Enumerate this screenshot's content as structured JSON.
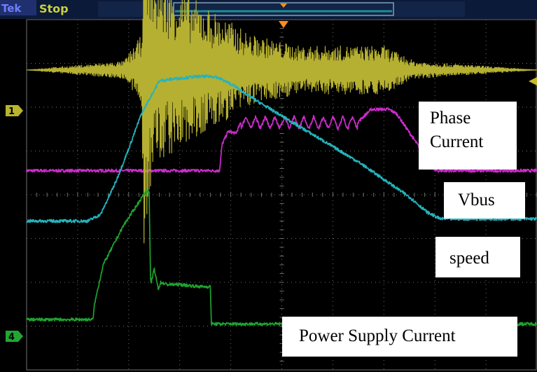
{
  "status_bar": {
    "brand": "Tek",
    "state": "Stop",
    "trigger_marker_color": "#ff8c1a"
  },
  "channel_markers": [
    {
      "label": "1",
      "color": "#b9b42e"
    },
    {
      "label": "4",
      "color": "#21a634"
    }
  ],
  "colors": {
    "background": "#000000",
    "grid": "#6f6f6f",
    "phase_current": "#b5b031",
    "vbus": "#cc2ccc",
    "speed": "#26b3bd",
    "power_supply_current": "#1ea42f"
  },
  "chart_data": {
    "type": "line",
    "title": "",
    "xlabel": "",
    "ylabel": "",
    "grid": true,
    "x_divisions": 10,
    "y_divisions": 8,
    "xlim": [
      0,
      10
    ],
    "ylim": [
      0,
      8
    ],
    "series": [
      {
        "name": "Phase Current",
        "key": "phase_current",
        "x": [
          0,
          1.9,
          2.25,
          2.3,
          2.5,
          4.4,
          4.8,
          5.3,
          6.0,
          7.0,
          7.6,
          10
        ],
        "y": [
          6.85,
          6.85,
          6.85,
          6.85,
          6.85,
          6.85,
          6.85,
          6.85,
          6.85,
          6.85,
          6.85,
          6.85
        ],
        "envelope": [
          0,
          0.2,
          0.8,
          4.0,
          2.2,
          0.8,
          0.7,
          0.55,
          0.55,
          0.55,
          0.2,
          0
        ]
      },
      {
        "name": "Vbus",
        "key": "vbus",
        "x": [
          0,
          3.78,
          3.83,
          3.95,
          4.1,
          4.2,
          6.48,
          6.75,
          7.1,
          7.25,
          7.6,
          8.0,
          8.3,
          10
        ],
        "y": [
          4.55,
          4.55,
          5.15,
          5.45,
          5.4,
          5.65,
          5.65,
          5.95,
          5.95,
          5.85,
          5.25,
          4.55,
          4.55,
          4.55
        ],
        "ripple": true
      },
      {
        "name": "speed",
        "key": "speed",
        "x": [
          0,
          1.2,
          1.45,
          1.75,
          2.0,
          2.25,
          2.6,
          2.9,
          3.35,
          3.7,
          4.05,
          4.5,
          5.5,
          6.5,
          7.5,
          7.85,
          8.1,
          10
        ],
        "y": [
          3.4,
          3.4,
          3.55,
          4.3,
          5.05,
          5.85,
          6.6,
          6.65,
          6.7,
          6.7,
          6.5,
          6.15,
          5.45,
          4.75,
          3.95,
          3.6,
          3.45,
          3.45
        ]
      },
      {
        "name": "Power Supply Current",
        "key": "power_supply_current",
        "x": [
          0,
          1.3,
          1.33,
          1.5,
          1.9,
          2.35,
          2.4,
          2.43,
          2.5,
          2.58,
          2.63,
          2.75,
          3.0,
          3.4,
          3.6,
          3.62,
          3.8,
          10
        ],
        "y": [
          1.15,
          1.15,
          1.5,
          2.4,
          3.3,
          4.1,
          4.05,
          1.95,
          2.3,
          1.85,
          2.0,
          1.95,
          1.95,
          1.9,
          1.9,
          1.05,
          1.05,
          1.05
        ]
      }
    ]
  },
  "labels": {
    "phase_current_line1": "Phase",
    "phase_current_line2": "Current",
    "vbus": "Vbus",
    "speed": "speed",
    "power_supply_current": "Power Supply Current"
  }
}
